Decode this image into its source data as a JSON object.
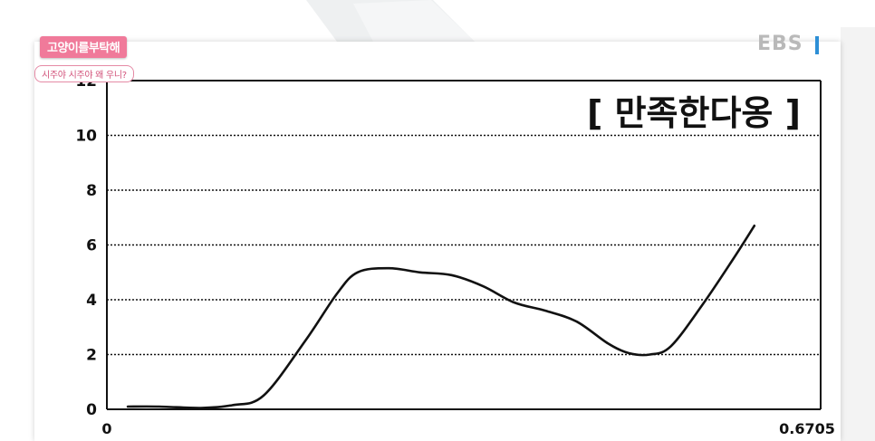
{
  "captions": {
    "main": "고양이를부탁해",
    "sub": "시주야 시주야 왜 우니?"
  },
  "logo": {
    "text": "EBS",
    "color": "#b9b9b9",
    "bar_color": "#2d8fd6"
  },
  "colors": {
    "caption_bg": "#f07a9a",
    "line": "#111111",
    "grid": "#111111"
  },
  "chart_data": {
    "type": "line",
    "title": "[ 만족한다옹 ]",
    "xlabel": "",
    "ylabel": "",
    "xlim": [
      0,
      0.6705
    ],
    "ylim": [
      0,
      12
    ],
    "x_tick_labels": [
      "0",
      "0.6705"
    ],
    "y_ticks": [
      0,
      2,
      4,
      6,
      8,
      10,
      12
    ],
    "grid": "horizontal dotted",
    "series": [
      {
        "x": [
          0.02,
          0.05,
          0.09,
          0.12,
          0.15,
          0.19,
          0.22,
          0.24,
          0.27,
          0.3,
          0.33,
          0.36,
          0.39,
          0.42,
          0.45,
          0.48,
          0.5,
          0.52,
          0.54,
          0.57,
          0.6,
          0.62
        ],
        "values": [
          0.1,
          0.1,
          0.05,
          0.15,
          0.5,
          2.5,
          4.2,
          5.0,
          5.15,
          5.0,
          4.9,
          4.5,
          3.9,
          3.6,
          3.2,
          2.4,
          2.05,
          2.0,
          2.3,
          3.8,
          5.5,
          6.7
        ]
      }
    ]
  }
}
